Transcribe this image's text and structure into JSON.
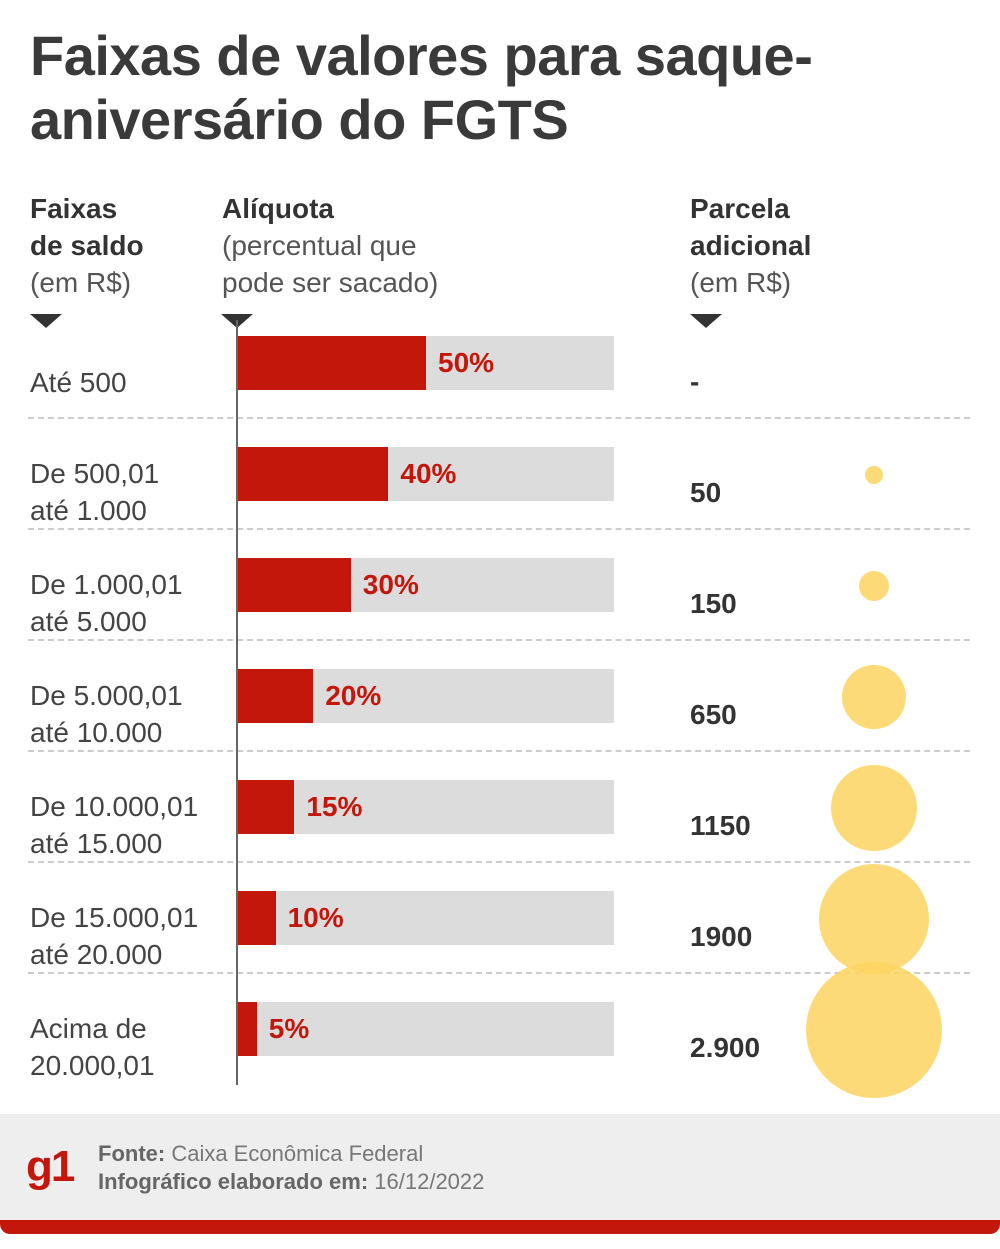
{
  "title": "Faixas de valores para saque-aniversário do FGTS",
  "headers": {
    "faixas": {
      "l1": "Faixas",
      "l2": "de saldo",
      "l3": "(em R$)"
    },
    "aliquota": {
      "l1": "Alíquota",
      "l2": "(percentual que",
      "l3": "pode ser sacado)"
    },
    "parcela": {
      "l1": "Parcela",
      "l2": "adicional",
      "l3": "(em R$)"
    }
  },
  "chart_data": {
    "type": "bar",
    "orientation": "horizontal",
    "xlim": [
      0,
      100
    ],
    "categories": [
      [
        "Até 500"
      ],
      [
        "De 500,01",
        "até 1.000"
      ],
      [
        "De 1.000,01",
        "até 5.000"
      ],
      [
        "De 5.000,01",
        "até 10.000"
      ],
      [
        "De 10.000,01",
        "até 15.000"
      ],
      [
        "De 15.000,01",
        "até 20.000"
      ],
      [
        "Acima de",
        "20.000,01"
      ]
    ],
    "values": [
      50,
      40,
      30,
      20,
      15,
      10,
      5
    ],
    "value_labels": [
      "50%",
      "40%",
      "30%",
      "20%",
      "15%",
      "10%",
      "5%"
    ],
    "additional_labels": [
      "-",
      "50",
      "150",
      "650",
      "1150",
      "1900",
      "2.900"
    ],
    "additional_values": [
      0,
      50,
      150,
      650,
      1150,
      1900,
      2900
    ],
    "colors": {
      "bar": "#c4170c",
      "track": "#dcdcdc",
      "bubble": "#fbd460"
    }
  },
  "footer": {
    "logo": "g1",
    "source_label": "Fonte:",
    "source": "Caixa Econômica Federal",
    "date_label": "Infográfico elaborado em:",
    "date": "16/12/2022"
  }
}
